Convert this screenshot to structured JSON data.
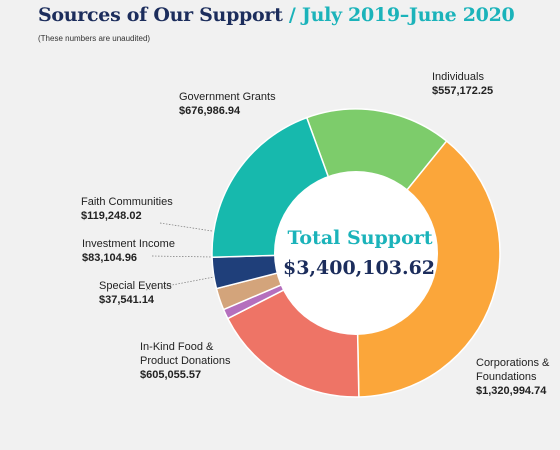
{
  "header": {
    "title_main": "Sources of Our Support",
    "title_period": " / July 2019–June 2020",
    "note": "(These numbers are unaudited)"
  },
  "center": {
    "label": "Total Support",
    "value": "$3,400,103.62"
  },
  "chart_data": {
    "type": "pie",
    "title": "Sources of Our Support / July 2019–June 2020",
    "total": 3400103.62,
    "slices": [
      {
        "label": "Individuals",
        "value": 557172.25,
        "display": "$557,172.25",
        "color": "#7dcc6b"
      },
      {
        "label": "Corporations & Foundations",
        "value": 1320994.74,
        "display": "$1,320,994.74",
        "color": "#fba63a"
      },
      {
        "label": "In-Kind Food & Product Donations",
        "value": 605055.57,
        "display": "$605,055.57",
        "color": "#ee7466"
      },
      {
        "label": "Special Events",
        "value": 37541.14,
        "display": "$37,541.14",
        "color": "#b56fbd"
      },
      {
        "label": "Investment Income",
        "value": 83104.96,
        "display": "$83,104.96",
        "color": "#d3a47b"
      },
      {
        "label": "Faith Communities",
        "value": 119248.02,
        "display": "$119,248.02",
        "color": "#1f3f7a"
      },
      {
        "label": "Government Grants",
        "value": 676986.94,
        "display": "$676,986.94",
        "color": "#17b9ad"
      }
    ]
  },
  "labels": {
    "individuals": {
      "name": "Individuals",
      "value": "$557,172.25"
    },
    "corporations": {
      "name_line1": "Corporations &",
      "name_line2": "Foundations",
      "value": "$1,320,994.74"
    },
    "inkind": {
      "name_line1": "In-Kind Food &",
      "name_line2": "Product Donations",
      "value": "$605,055.57"
    },
    "special": {
      "name": "Special Events",
      "value": "$37,541.14"
    },
    "investment": {
      "name": "Investment Income",
      "value": "$83,104.96"
    },
    "faith": {
      "name": "Faith Communities",
      "value": "$119,248.02"
    },
    "government": {
      "name": "Government Grants",
      "value": "$676,986.94"
    }
  }
}
